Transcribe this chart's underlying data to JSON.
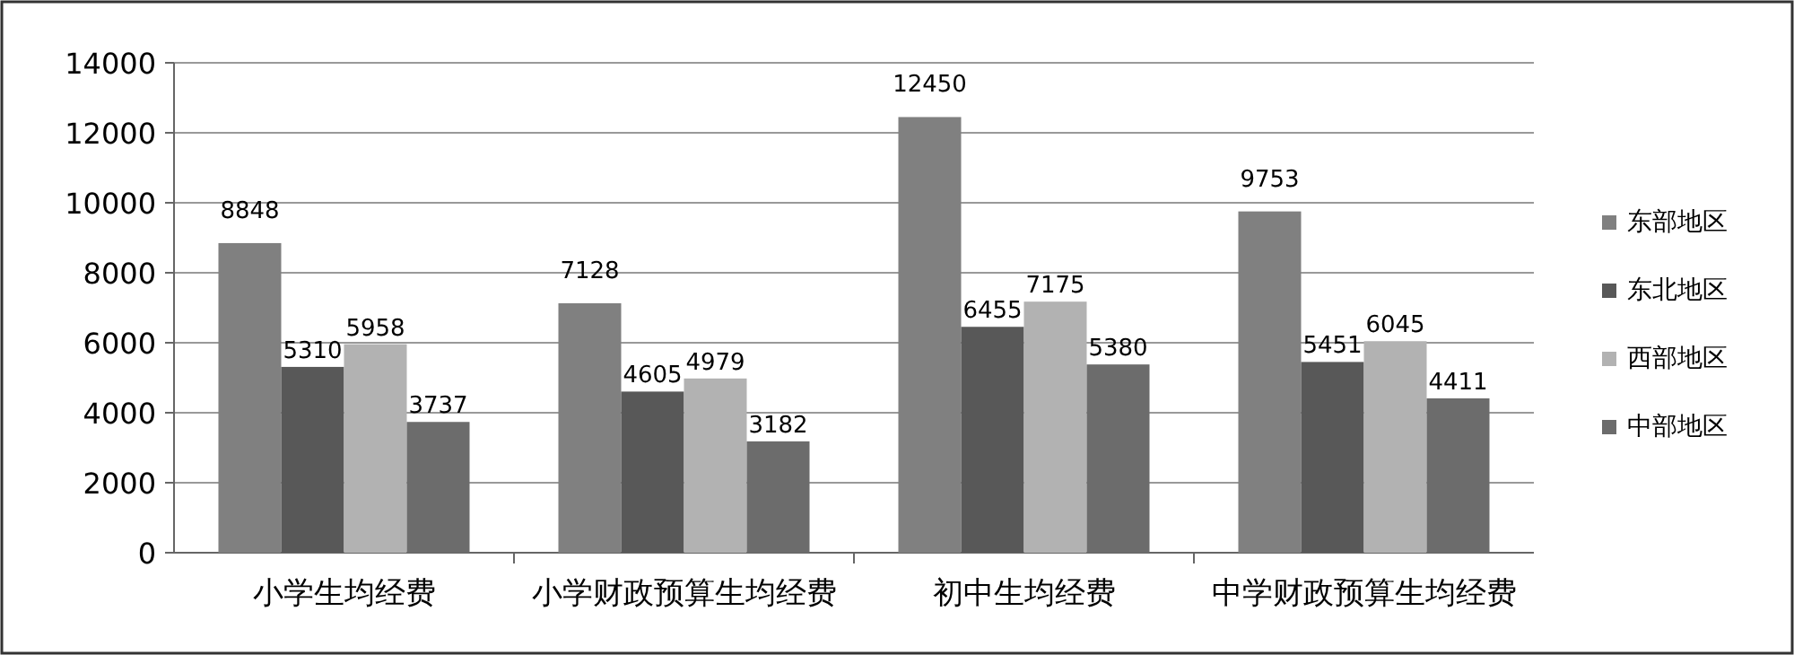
{
  "chart_data": {
    "type": "bar",
    "categories": [
      "小学生均经费",
      "小学财政预算生均经费",
      "初中生均经费",
      "中学财政预算生均经费"
    ],
    "series": [
      {
        "name": "东部地区",
        "color": "#808080",
        "values": [
          8848,
          7128,
          12450,
          9753
        ]
      },
      {
        "name": "东北地区",
        "color": "#585858",
        "values": [
          5310,
          4605,
          6455,
          5451
        ]
      },
      {
        "name": "西部地区",
        "color": "#b2b2b2",
        "values": [
          5958,
          4979,
          7175,
          6045
        ]
      },
      {
        "name": "中部地区",
        "color": "#6c6c6c",
        "values": [
          3737,
          3182,
          5380,
          4411
        ]
      }
    ],
    "ylim": [
      0,
      14000
    ],
    "yticks": [
      0,
      2000,
      4000,
      6000,
      8000,
      10000,
      12000,
      14000
    ],
    "grid": "y",
    "legend": "right",
    "data_labels": true
  }
}
